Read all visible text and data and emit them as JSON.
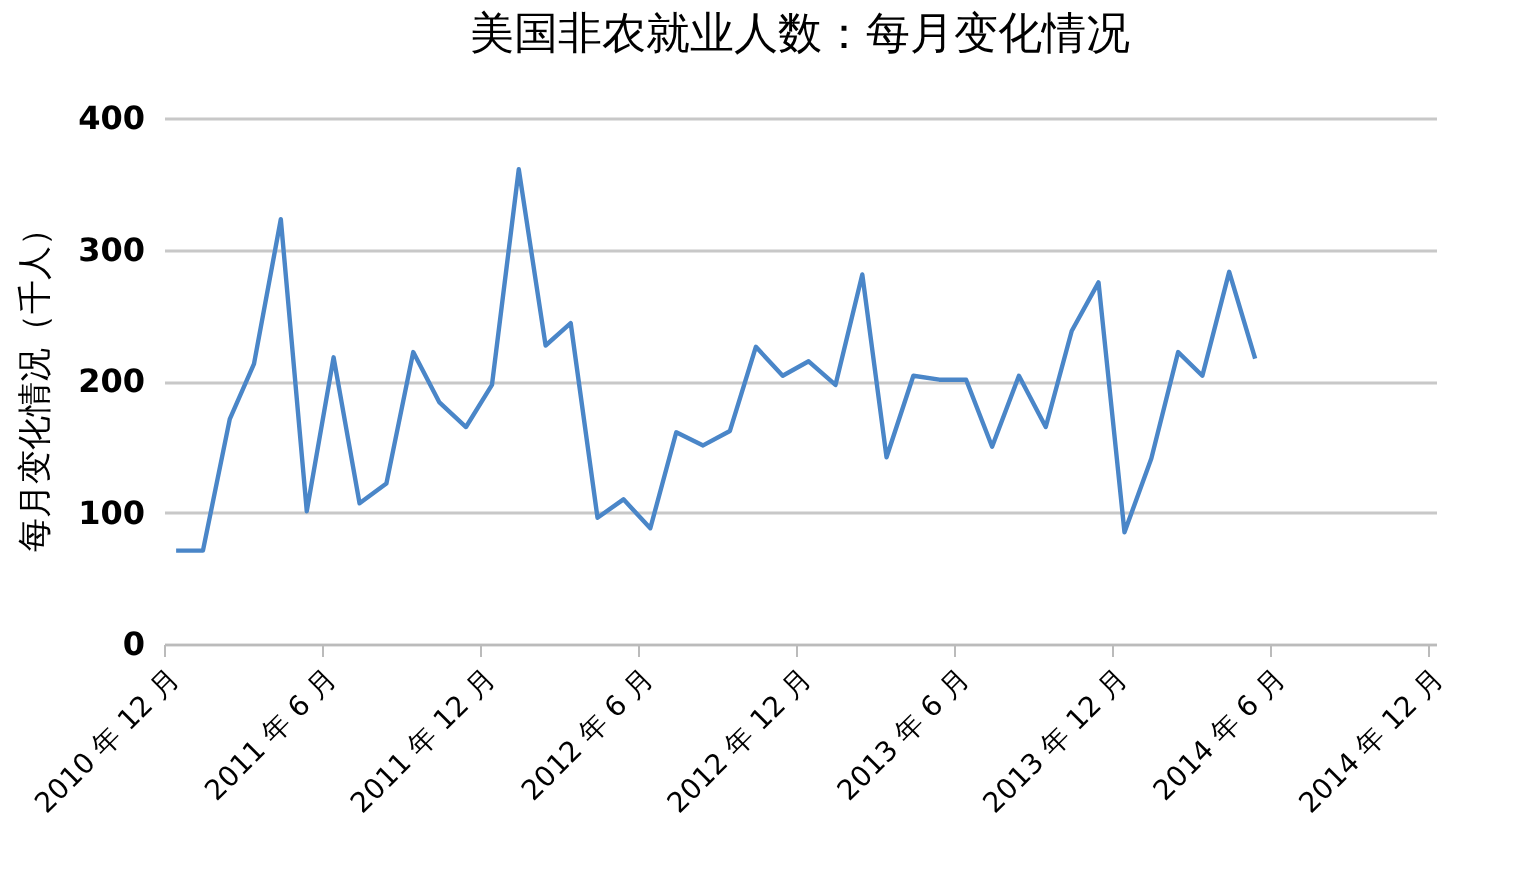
{
  "chart_data": {
    "type": "line",
    "title": "美国非农就业人数：每月变化情况",
    "ylabel": "每月变化情况（千人）",
    "x": [
      "2010-12-15",
      "2011-01-15",
      "2011-02-15",
      "2011-03-15",
      "2011-04-15",
      "2011-05-15",
      "2011-06-15",
      "2011-07-15",
      "2011-08-15",
      "2011-09-15",
      "2011-10-15",
      "2011-11-15",
      "2011-12-15",
      "2012-01-15",
      "2012-02-15",
      "2012-03-15",
      "2012-04-15",
      "2012-05-15",
      "2012-06-15",
      "2012-07-15",
      "2012-08-15",
      "2012-09-15",
      "2012-10-15",
      "2012-11-15",
      "2012-12-15",
      "2013-01-15",
      "2013-02-15",
      "2013-03-15",
      "2013-04-15",
      "2013-05-15",
      "2013-06-15",
      "2013-07-15",
      "2013-08-15",
      "2013-09-15",
      "2013-10-15",
      "2013-11-15",
      "2013-12-15",
      "2014-01-15",
      "2014-02-15",
      "2014-03-15",
      "2014-04-15",
      "2014-05-15"
    ],
    "series": [
      {
        "color": "#4a86c8",
        "values": [
          71,
          71,
          171,
          213,
          323,
          101,
          218,
          107,
          122,
          222,
          184,
          165,
          197,
          361,
          227,
          244,
          96,
          110,
          88,
          161,
          151,
          162,
          226,
          204,
          215,
          197,
          281,
          142,
          204,
          201,
          201,
          150,
          204,
          165,
          238,
          275,
          85,
          141,
          222,
          204,
          283,
          217
        ]
      }
    ],
    "xlim": [
      "2010-12-01",
      "2014-12-10"
    ],
    "xticks": [
      {
        "value": "2010-12-01",
        "label": "2010 年 12 月"
      },
      {
        "value": "2011-06-01",
        "label": "2011 年 6 月"
      },
      {
        "value": "2011-12-01",
        "label": "2011 年 12 月"
      },
      {
        "value": "2012-06-01",
        "label": "2012 年 6 月"
      },
      {
        "value": "2012-12-01",
        "label": "2012 年 12 月"
      },
      {
        "value": "2013-06-01",
        "label": "2013 年 6 月"
      },
      {
        "value": "2013-12-01",
        "label": "2013 年 12 月"
      },
      {
        "value": "2014-06-01",
        "label": "2014 年 6 月"
      },
      {
        "value": "2014-12-01",
        "label": "2014 年 12 月"
      }
    ],
    "ylim": [
      0,
      400
    ],
    "yticks": [
      0,
      100,
      200,
      300,
      400
    ],
    "grid": "y",
    "line_style": "solid"
  }
}
